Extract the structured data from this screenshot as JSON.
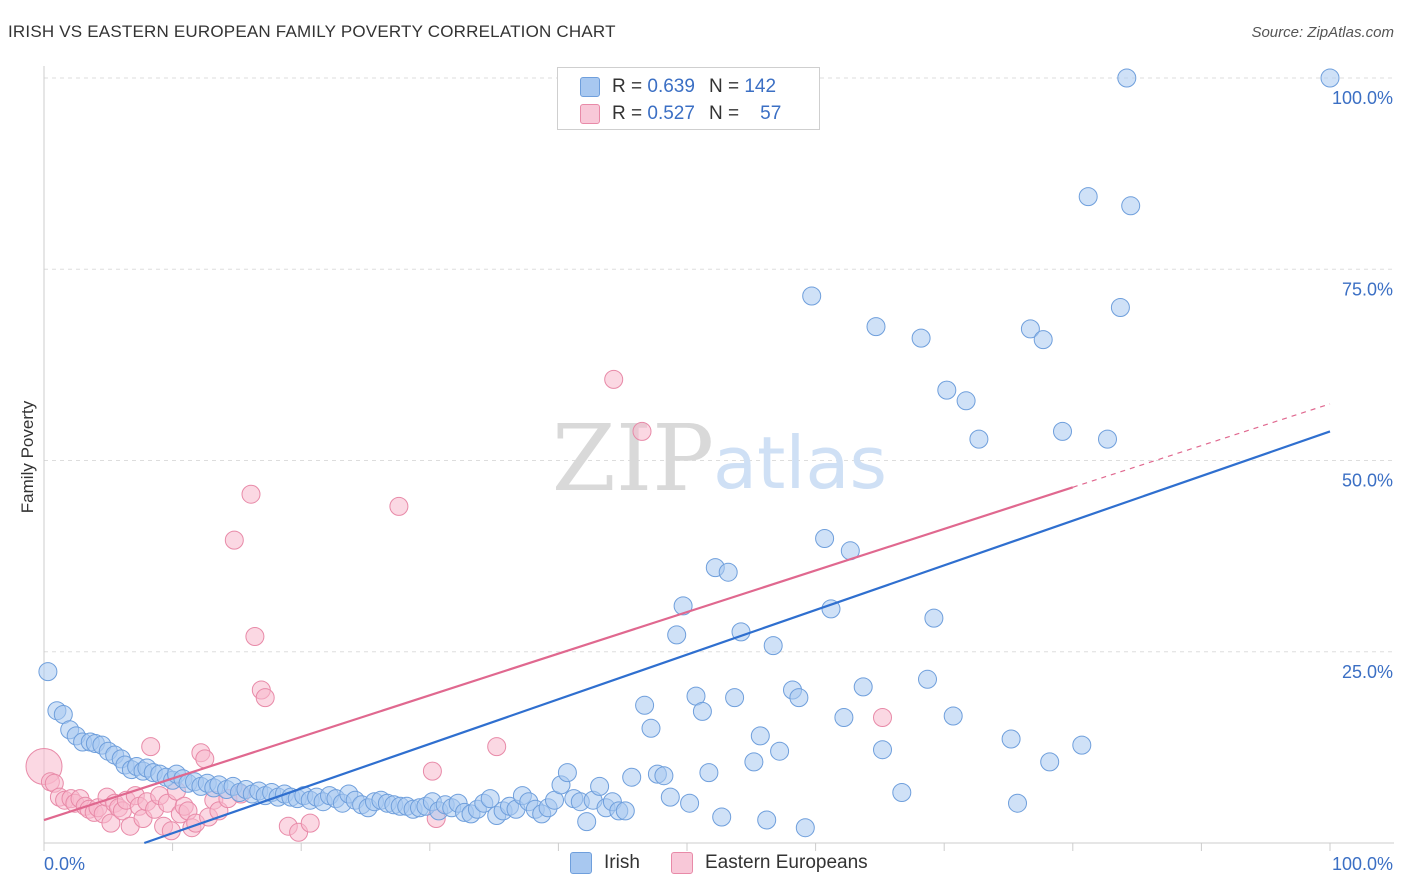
{
  "title": "IRISH VS EASTERN EUROPEAN FAMILY POVERTY CORRELATION CHART",
  "source": "Source: ZipAtlas.com",
  "watermark": {
    "zip": "ZIP",
    "atlas": "atlas"
  },
  "legend_top": [
    {
      "r_label": "R =",
      "r_value": "0.639",
      "n_label": "N =",
      "n_value": "142"
    },
    {
      "r_label": "R =",
      "r_value": "0.527",
      "n_label": "N =",
      "n_value": "57"
    }
  ],
  "legend_bottom": [
    {
      "label": "Irish"
    },
    {
      "label": "Eastern Europeans"
    }
  ],
  "colors": {
    "irish_fill": "#a8c8f0",
    "irish_stroke": "#6f9fdc",
    "irish_line": "#2f6fcf",
    "east_fill": "#f8b8cc",
    "east_stroke": "#e88aa8",
    "east_line": "#e0688f",
    "grid": "#dddddd",
    "tick_label": "#3b6fc4"
  },
  "chart_data": {
    "type": "scatter",
    "title": "IRISH VS EASTERN EUROPEAN FAMILY POVERTY CORRELATION CHART",
    "xlabel": "",
    "ylabel": "Family Poverty",
    "xlim": [
      0,
      100
    ],
    "ylim": [
      0,
      100
    ],
    "x_tick_labels": [
      "0.0%",
      "100.0%"
    ],
    "y_ticks": [
      25,
      50,
      75,
      100
    ],
    "y_tick_labels": [
      "25.0%",
      "50.0%",
      "75.0%",
      "100.0%"
    ],
    "grid": true,
    "series": [
      {
        "name": "Irish",
        "r": 0.639,
        "n": 142,
        "trend": {
          "x0": 7.8,
          "y0": 0,
          "x1": 100,
          "y1": 53.8
        },
        "points": [
          [
            0.3,
            22.4
          ],
          [
            1,
            17.3
          ],
          [
            1.5,
            16.8
          ],
          [
            2,
            14.8
          ],
          [
            2.5,
            14
          ],
          [
            3,
            13.2
          ],
          [
            3.6,
            13.2
          ],
          [
            4,
            13
          ],
          [
            4.5,
            12.8
          ],
          [
            5,
            12
          ],
          [
            5.5,
            11.5
          ],
          [
            6,
            11
          ],
          [
            6.3,
            10.2
          ],
          [
            6.8,
            9.6
          ],
          [
            7.2,
            10
          ],
          [
            7.7,
            9.4
          ],
          [
            8,
            9.8
          ],
          [
            8.5,
            9.2
          ],
          [
            9,
            9
          ],
          [
            9.5,
            8.6
          ],
          [
            10,
            8.2
          ],
          [
            10.3,
            9
          ],
          [
            10.8,
            8.4
          ],
          [
            11.2,
            7.8
          ],
          [
            11.7,
            8
          ],
          [
            12.2,
            7.4
          ],
          [
            12.7,
            7.8
          ],
          [
            13.2,
            7.2
          ],
          [
            13.6,
            7.6
          ],
          [
            14.2,
            7
          ],
          [
            14.7,
            7.4
          ],
          [
            15.2,
            6.6
          ],
          [
            15.7,
            7
          ],
          [
            16.2,
            6.4
          ],
          [
            16.7,
            6.8
          ],
          [
            17.2,
            6.2
          ],
          [
            17.7,
            6.6
          ],
          [
            18.2,
            6
          ],
          [
            18.7,
            6.4
          ],
          [
            19.2,
            6
          ],
          [
            19.7,
            5.8
          ],
          [
            20.2,
            6.2
          ],
          [
            20.7,
            5.6
          ],
          [
            21.2,
            6
          ],
          [
            21.7,
            5.4
          ],
          [
            22.2,
            6.2
          ],
          [
            22.7,
            5.8
          ],
          [
            23.2,
            5.2
          ],
          [
            23.7,
            6.4
          ],
          [
            24.2,
            5.6
          ],
          [
            24.7,
            5
          ],
          [
            25.2,
            4.6
          ],
          [
            25.7,
            5.4
          ],
          [
            26.2,
            5.6
          ],
          [
            26.7,
            5.2
          ],
          [
            27.2,
            5
          ],
          [
            27.7,
            4.8
          ],
          [
            28.2,
            4.8
          ],
          [
            28.7,
            4.4
          ],
          [
            29.2,
            4.6
          ],
          [
            29.7,
            4.8
          ],
          [
            30.2,
            5.4
          ],
          [
            30.7,
            4.2
          ],
          [
            31.2,
            5
          ],
          [
            31.7,
            4.6
          ],
          [
            32.2,
            5.2
          ],
          [
            32.7,
            4
          ],
          [
            33.2,
            3.8
          ],
          [
            33.7,
            4.4
          ],
          [
            34.2,
            5.2
          ],
          [
            34.7,
            5.8
          ],
          [
            35.2,
            3.6
          ],
          [
            35.7,
            4.2
          ],
          [
            36.2,
            4.8
          ],
          [
            36.7,
            4.4
          ],
          [
            37.2,
            6.2
          ],
          [
            37.7,
            5.4
          ],
          [
            38.2,
            4.4
          ],
          [
            38.7,
            3.8
          ],
          [
            39.2,
            4.6
          ],
          [
            39.7,
            5.6
          ],
          [
            40.2,
            7.6
          ],
          [
            40.7,
            9.2
          ],
          [
            41.2,
            5.8
          ],
          [
            41.7,
            5.4
          ],
          [
            42.2,
            2.8
          ],
          [
            42.7,
            5.6
          ],
          [
            43.2,
            7.4
          ],
          [
            43.7,
            4.6
          ],
          [
            44.2,
            5.4
          ],
          [
            44.7,
            4.2
          ],
          [
            45.2,
            4.2
          ],
          [
            45.7,
            8.6
          ],
          [
            46.7,
            18
          ],
          [
            47.2,
            15
          ],
          [
            47.7,
            9
          ],
          [
            48.2,
            8.8
          ],
          [
            48.7,
            6
          ],
          [
            49.2,
            27.2
          ],
          [
            49.7,
            31
          ],
          [
            50.2,
            5.2
          ],
          [
            50.7,
            19.2
          ],
          [
            51.2,
            17.2
          ],
          [
            51.7,
            9.2
          ],
          [
            52.2,
            36
          ],
          [
            52.7,
            3.4
          ],
          [
            53.2,
            35.4
          ],
          [
            53.7,
            19
          ],
          [
            54.2,
            27.6
          ],
          [
            55.2,
            10.6
          ],
          [
            55.7,
            14
          ],
          [
            56.2,
            3
          ],
          [
            56.7,
            25.8
          ],
          [
            57.2,
            12
          ],
          [
            58.2,
            20
          ],
          [
            58.7,
            19
          ],
          [
            59.2,
            2
          ],
          [
            59.7,
            71.5
          ],
          [
            60.7,
            39.8
          ],
          [
            61.2,
            30.6
          ],
          [
            62.2,
            16.4
          ],
          [
            62.7,
            38.2
          ],
          [
            63.7,
            20.4
          ],
          [
            64.7,
            67.5
          ],
          [
            65.2,
            12.2
          ],
          [
            66.7,
            6.6
          ],
          [
            68.2,
            66
          ],
          [
            68.7,
            21.4
          ],
          [
            69.2,
            29.4
          ],
          [
            70.2,
            59.2
          ],
          [
            70.7,
            16.6
          ],
          [
            71.7,
            57.8
          ],
          [
            72.7,
            52.8
          ],
          [
            75.2,
            13.6
          ],
          [
            75.7,
            5.2
          ],
          [
            76.7,
            67.2
          ],
          [
            77.7,
            65.8
          ],
          [
            78.2,
            10.6
          ],
          [
            79.2,
            53.8
          ],
          [
            80.7,
            12.8
          ],
          [
            81.2,
            84.5
          ],
          [
            82.7,
            52.8
          ],
          [
            83.7,
            70
          ],
          [
            84.2,
            100
          ],
          [
            84.5,
            83.3
          ],
          [
            100,
            100
          ]
        ]
      },
      {
        "name": "Eastern Europeans",
        "r": 0.527,
        "n": 57,
        "trend": {
          "x0": 0,
          "y0": 3,
          "x1": 80,
          "y1": 46.5,
          "dash_x1": 100,
          "dash_y1": 57.4
        },
        "points": [
          [
            0,
            10
          ],
          [
            0.5,
            8
          ],
          [
            0.8,
            7.8
          ],
          [
            1.2,
            6
          ],
          [
            1.6,
            5.6
          ],
          [
            2.1,
            5.8
          ],
          [
            2.4,
            5.2
          ],
          [
            2.8,
            5.8
          ],
          [
            3.2,
            4.8
          ],
          [
            3.5,
            4.4
          ],
          [
            3.9,
            4
          ],
          [
            4.2,
            4.6
          ],
          [
            4.6,
            3.8
          ],
          [
            4.9,
            6
          ],
          [
            5.2,
            2.6
          ],
          [
            5.5,
            5.2
          ],
          [
            5.8,
            4.6
          ],
          [
            6.1,
            4.2
          ],
          [
            6.4,
            5.6
          ],
          [
            6.7,
            2.2
          ],
          [
            7.1,
            6.2
          ],
          [
            7.4,
            4.8
          ],
          [
            7.7,
            3.2
          ],
          [
            8,
            5.4
          ],
          [
            8.3,
            12.6
          ],
          [
            8.6,
            4.4
          ],
          [
            9,
            6.2
          ],
          [
            9.3,
            2.2
          ],
          [
            9.6,
            5.2
          ],
          [
            9.9,
            1.6
          ],
          [
            10.3,
            6.8
          ],
          [
            10.6,
            3.8
          ],
          [
            10.9,
            4.8
          ],
          [
            11.2,
            4.2
          ],
          [
            11.5,
            2
          ],
          [
            11.8,
            2.6
          ],
          [
            12.2,
            11.8
          ],
          [
            12.5,
            11
          ],
          [
            12.8,
            3.4
          ],
          [
            13.2,
            5.6
          ],
          [
            13.6,
            4.2
          ],
          [
            14.3,
            5.8
          ],
          [
            14.8,
            39.6
          ],
          [
            15.3,
            6.4
          ],
          [
            16.1,
            45.6
          ],
          [
            16.4,
            27
          ],
          [
            16.9,
            20
          ],
          [
            17.2,
            19
          ],
          [
            19,
            2.2
          ],
          [
            19.8,
            1.4
          ],
          [
            20.7,
            2.6
          ],
          [
            27.6,
            44
          ],
          [
            30.2,
            9.4
          ],
          [
            30.5,
            3.2
          ],
          [
            35.2,
            12.6
          ],
          [
            44.3,
            60.6
          ],
          [
            46.5,
            53.8
          ],
          [
            65.2,
            16.4
          ]
        ]
      }
    ]
  }
}
